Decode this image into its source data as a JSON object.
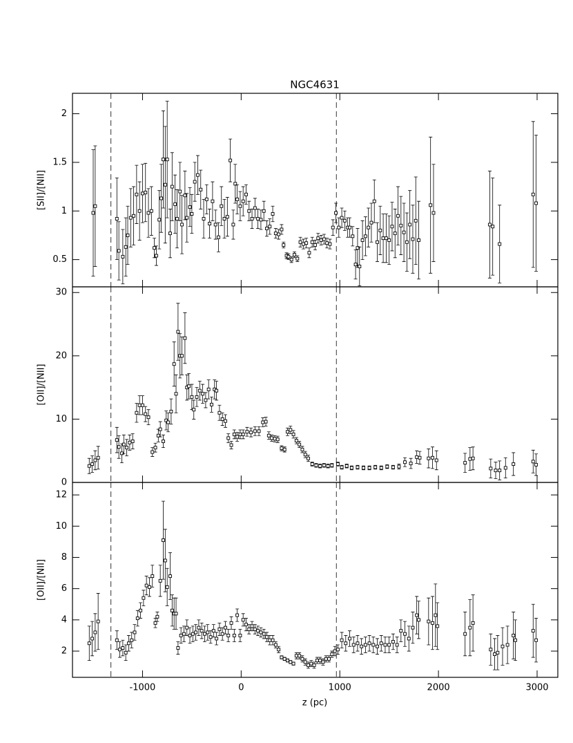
{
  "chart_data": [
    {
      "type": "scatter",
      "title": "NGC4631",
      "ylabel": "[SII]/[NII]",
      "xlim": [
        -1710,
        3210
      ],
      "xticks": [
        -1000,
        0,
        1000,
        2000,
        3000
      ],
      "xtick_labels": false,
      "ylim": [
        0.22,
        2.21
      ],
      "yticks": [
        0.5,
        1,
        1.5,
        2
      ],
      "vlines": [
        -1320,
        965
      ],
      "x": [
        -1500,
        -1480,
        -1260,
        -1240,
        -1200,
        -1170,
        -1150,
        -1120,
        -1090,
        -1060,
        -1030,
        -1000,
        -970,
        -940,
        -910,
        -880,
        -860,
        -830,
        -810,
        -790,
        -770,
        -750,
        -720,
        -700,
        -670,
        -650,
        -620,
        -600,
        -570,
        -550,
        -520,
        -500,
        -470,
        -440,
        -410,
        -380,
        -350,
        -320,
        -290,
        -260,
        -230,
        -200,
        -170,
        -140,
        -110,
        -80,
        -60,
        -40,
        -10,
        20,
        50,
        80,
        110,
        140,
        170,
        200,
        230,
        260,
        290,
        320,
        350,
        380,
        410,
        430,
        460,
        480,
        510,
        540,
        570,
        600,
        630,
        660,
        690,
        720,
        750,
        780,
        810,
        840,
        870,
        900,
        930,
        960,
        990,
        1020,
        1050,
        1080,
        1100,
        1130,
        1160,
        1180,
        1200,
        1230,
        1260,
        1290,
        1320,
        1350,
        1380,
        1410,
        1440,
        1470,
        1500,
        1530,
        1560,
        1590,
        1620,
        1650,
        1680,
        1710,
        1740,
        1770,
        1800,
        1920,
        1950,
        2520,
        2550,
        2620,
        2960,
        2990
      ],
      "values": [
        0.98,
        1.05,
        0.92,
        0.59,
        0.53,
        0.63,
        0.75,
        0.93,
        0.95,
        1.17,
        1.0,
        1.18,
        1.19,
        0.98,
        1.0,
        0.62,
        0.54,
        0.91,
        1.13,
        1.53,
        1.27,
        1.53,
        0.77,
        1.25,
        1.07,
        0.92,
        1.2,
        0.86,
        1.16,
        0.93,
        1.04,
        0.97,
        1.3,
        1.37,
        1.22,
        0.92,
        1.12,
        0.87,
        1.1,
        0.86,
        0.73,
        1.05,
        0.92,
        0.94,
        1.52,
        0.86,
        1.28,
        1.12,
        1.05,
        1.1,
        1.17,
        1.0,
        0.92,
        1.03,
        0.92,
        0.91,
        1.0,
        0.82,
        0.84,
        0.97,
        0.77,
        0.76,
        0.81,
        0.65,
        0.54,
        0.53,
        0.5,
        0.55,
        0.51,
        0.68,
        0.66,
        0.67,
        0.57,
        0.68,
        0.65,
        0.72,
        0.7,
        0.71,
        0.67,
        0.66,
        0.83,
        0.98,
        0.83,
        0.93,
        0.9,
        0.83,
        0.83,
        0.74,
        0.45,
        0.62,
        0.43,
        0.7,
        0.74,
        0.83,
        0.88,
        1.1,
        0.68,
        0.8,
        0.72,
        0.72,
        0.7,
        0.84,
        0.77,
        0.95,
        0.85,
        0.78,
        0.68,
        0.86,
        0.71,
        0.9,
        0.7,
        1.06,
        0.98,
        0.86,
        0.84,
        0.66,
        1.17,
        1.08
      ],
      "errors": [
        0.65,
        0.62,
        0.42,
        0.3,
        0.28,
        0.3,
        0.3,
        0.3,
        0.3,
        0.3,
        0.3,
        0.3,
        0.3,
        0.25,
        0.25,
        0.1,
        0.1,
        0.3,
        0.35,
        0.5,
        0.6,
        0.6,
        0.25,
        0.35,
        0.3,
        0.3,
        0.3,
        0.3,
        0.25,
        0.25,
        0.2,
        0.2,
        0.2,
        0.2,
        0.2,
        0.2,
        0.15,
        0.15,
        0.2,
        0.15,
        0.15,
        0.2,
        0.2,
        0.2,
        0.22,
        0.15,
        0.2,
        0.15,
        0.15,
        0.15,
        0.1,
        0.1,
        0.1,
        0.1,
        0.1,
        0.1,
        0.1,
        0.08,
        0.08,
        0.08,
        0.05,
        0.05,
        0.05,
        0.03,
        0.03,
        0.03,
        0.03,
        0.03,
        0.03,
        0.05,
        0.05,
        0.05,
        0.05,
        0.05,
        0.05,
        0.05,
        0.05,
        0.05,
        0.05,
        0.05,
        0.08,
        0.1,
        0.1,
        0.1,
        0.1,
        0.1,
        0.1,
        0.1,
        0.15,
        0.2,
        0.2,
        0.2,
        0.2,
        0.2,
        0.2,
        0.22,
        0.2,
        0.25,
        0.25,
        0.25,
        0.25,
        0.25,
        0.25,
        0.3,
        0.3,
        0.3,
        0.3,
        0.35,
        0.35,
        0.45,
        0.4,
        0.7,
        0.5,
        0.55,
        0.5,
        0.4,
        0.75,
        0.7
      ]
    },
    {
      "type": "scatter",
      "ylabel": "[OII]/[NII]",
      "xlim": [
        -1710,
        3210
      ],
      "xticks": [
        -1000,
        0,
        1000,
        2000,
        3000
      ],
      "xtick_labels": false,
      "ylim": [
        0,
        30.9
      ],
      "yticks": [
        0,
        10,
        20,
        30
      ],
      "vlines": [
        -1320,
        965
      ],
      "x": [
        -1540,
        -1510,
        -1480,
        -1450,
        -1260,
        -1240,
        -1210,
        -1190,
        -1160,
        -1130,
        -1100,
        -1060,
        -1030,
        -1000,
        -970,
        -940,
        -900,
        -870,
        -840,
        -820,
        -790,
        -760,
        -740,
        -710,
        -680,
        -660,
        -640,
        -620,
        -600,
        -570,
        -550,
        -530,
        -500,
        -480,
        -450,
        -420,
        -390,
        -360,
        -330,
        -300,
        -270,
        -250,
        -220,
        -190,
        -160,
        -130,
        -100,
        -70,
        -40,
        -10,
        20,
        60,
        100,
        140,
        180,
        220,
        250,
        280,
        310,
        340,
        370,
        410,
        440,
        470,
        500,
        530,
        560,
        590,
        620,
        650,
        680,
        720,
        760,
        800,
        840,
        880,
        920,
        980,
        1020,
        1070,
        1120,
        1180,
        1240,
        1300,
        1360,
        1420,
        1480,
        1540,
        1600,
        1660,
        1720,
        1780,
        1810,
        1900,
        1940,
        1980,
        2270,
        2320,
        2350,
        2530,
        2580,
        2620,
        2680,
        2760,
        2960,
        2990
      ],
      "values": [
        2.6,
        2.9,
        3.5,
        3.9,
        6.7,
        5.6,
        4.6,
        6,
        5.5,
        6.3,
        6.5,
        11,
        12.2,
        12.2,
        10.8,
        10.3,
        4.8,
        5.5,
        7.4,
        8.4,
        6.5,
        9.8,
        9.5,
        11.2,
        18.7,
        14,
        23.8,
        20,
        20,
        22.8,
        15,
        15.2,
        13.5,
        11.5,
        13.5,
        14.5,
        14,
        13,
        14.7,
        12.3,
        14.7,
        14.5,
        11,
        10,
        9.7,
        7,
        5.9,
        7.6,
        7.2,
        7.6,
        7.6,
        8,
        7.9,
        8.1,
        8.1,
        9.5,
        9.6,
        7.4,
        7,
        6.9,
        6.8,
        5.4,
        5.2,
        8,
        8.3,
        7.6,
        6.6,
        6,
        5.2,
        4.4,
        3.8,
        2.9,
        2.7,
        2.6,
        2.7,
        2.6,
        2.7,
        2.9,
        2.4,
        2.6,
        2.3,
        2.4,
        2.3,
        2.3,
        2.4,
        2.3,
        2.5,
        2.4,
        2.5,
        3.2,
        3,
        4,
        3.9,
        3.8,
        3.9,
        3.5,
        3.1,
        3.7,
        3.8,
        2.2,
        1.9,
        1.9,
        2.3,
        2.9,
        3.3,
        2.8
      ],
      "errors": [
        1.2,
        1.3,
        1.5,
        1.8,
        2,
        1.8,
        1.5,
        1.5,
        1.3,
        1.2,
        1.2,
        1.5,
        1.5,
        1.5,
        1.2,
        1.2,
        0.7,
        0.7,
        1,
        1.2,
        1,
        1.5,
        1.5,
        2,
        3.5,
        3,
        4.5,
        3.5,
        3,
        4,
        2,
        2,
        2,
        1.5,
        1.5,
        1.5,
        1.5,
        1.2,
        1.5,
        1.2,
        1.5,
        1.5,
        1.2,
        1,
        1,
        0.7,
        0.6,
        0.7,
        0.7,
        0.7,
        0.7,
        0.7,
        0.7,
        0.7,
        0.7,
        0.7,
        0.7,
        0.6,
        0.5,
        0.5,
        0.5,
        0.4,
        0.4,
        0.6,
        0.6,
        0.6,
        0.5,
        0.5,
        0.5,
        0.5,
        0.5,
        0.3,
        0.3,
        0.3,
        0.3,
        0.3,
        0.3,
        0.3,
        0.3,
        0.3,
        0.3,
        0.3,
        0.3,
        0.3,
        0.3,
        0.3,
        0.3,
        0.3,
        0.4,
        0.7,
        0.8,
        1,
        1,
        1.5,
        1.7,
        1.5,
        1.5,
        1.8,
        1.8,
        1.5,
        1.3,
        1.5,
        1.6,
        1.8,
        1.8,
        1.7
      ]
    },
    {
      "type": "scatter",
      "ylabel": "[OII]/[NII]",
      "xlabel": "z (pc)",
      "xlim": [
        -1710,
        3210
      ],
      "xticks": [
        -1000,
        0,
        1000,
        2000,
        3000
      ],
      "xtick_labels": true,
      "ylim": [
        0.32,
        12.8
      ],
      "yticks": [
        2,
        4,
        6,
        8,
        10,
        12
      ],
      "vlines": [
        -1320,
        965
      ],
      "x": [
        -1540,
        -1510,
        -1480,
        -1450,
        -1260,
        -1230,
        -1200,
        -1170,
        -1140,
        -1110,
        -1080,
        -1050,
        -1020,
        -990,
        -960,
        -930,
        -900,
        -870,
        -850,
        -820,
        -790,
        -770,
        -750,
        -720,
        -700,
        -680,
        -660,
        -640,
        -610,
        -580,
        -550,
        -520,
        -490,
        -460,
        -430,
        -400,
        -370,
        -340,
        -310,
        -280,
        -250,
        -220,
        -190,
        -160,
        -130,
        -100,
        -70,
        -40,
        -10,
        20,
        50,
        80,
        110,
        140,
        170,
        200,
        230,
        260,
        290,
        320,
        350,
        380,
        410,
        440,
        470,
        500,
        530,
        560,
        590,
        620,
        650,
        680,
        710,
        740,
        770,
        800,
        830,
        860,
        890,
        920,
        950,
        980,
        1020,
        1060,
        1100,
        1140,
        1180,
        1220,
        1260,
        1300,
        1340,
        1380,
        1420,
        1460,
        1500,
        1540,
        1580,
        1620,
        1660,
        1700,
        1740,
        1780,
        1800,
        1900,
        1940,
        1970,
        1990,
        2270,
        2320,
        2350,
        2530,
        2570,
        2600,
        2650,
        2700,
        2760,
        2780,
        2960,
        2990
      ],
      "values": [
        2.5,
        2.8,
        3.2,
        3.9,
        2.7,
        2.1,
        2.2,
        1.9,
        2.5,
        2.7,
        3.2,
        4.1,
        4.6,
        5.4,
        6.2,
        6.1,
        6.8,
        3.8,
        4.2,
        6.5,
        9.1,
        7.8,
        6.1,
        6.8,
        4.6,
        4.4,
        4.4,
        2.2,
        3,
        3.1,
        3.5,
        3,
        3.1,
        3.2,
        3.5,
        3.3,
        3.1,
        3.2,
        2.9,
        3.3,
        2.8,
        3.4,
        3.1,
        3.5,
        3,
        3.8,
        3,
        4.3,
        3,
        4,
        3.7,
        3.4,
        3.6,
        3.4,
        3.3,
        3.2,
        3.1,
        2.9,
        2.7,
        2.7,
        2.4,
        2.1,
        1.6,
        1.5,
        1.4,
        1.3,
        1.2,
        1.7,
        1.7,
        1.5,
        1.3,
        1.1,
        1.2,
        1.1,
        1.4,
        1.4,
        1.3,
        1.5,
        1.5,
        1.8,
        2,
        2.1,
        2.7,
        2.5,
        2.8,
        2.4,
        2.5,
        2.3,
        2.4,
        2.5,
        2.4,
        2.3,
        2.5,
        2.4,
        2.4,
        2.6,
        2.4,
        3.3,
        3.1,
        2.8,
        3.5,
        4.3,
        4,
        3.9,
        3.8,
        4.3,
        3.6,
        3.1,
        3.5,
        3.8,
        2.1,
        1.8,
        1.9,
        2.3,
        2.4,
        3,
        2.7,
        3.3,
        2.7
      ],
      "errors": [
        1.1,
        1.1,
        1.2,
        1.8,
        0.6,
        0.5,
        0.5,
        0.5,
        0.5,
        0.5,
        0.5,
        0.5,
        0.5,
        0.5,
        0.6,
        0.6,
        0.7,
        0.3,
        0.3,
        1,
        2.5,
        2,
        1.2,
        1.5,
        1,
        1,
        1,
        0.4,
        0.5,
        0.5,
        0.5,
        0.5,
        0.5,
        0.5,
        0.5,
        0.5,
        0.5,
        0.5,
        0.4,
        0.4,
        0.4,
        0.4,
        0.4,
        0.4,
        0.4,
        0.4,
        0.4,
        0.4,
        0.4,
        0.4,
        0.4,
        0.3,
        0.3,
        0.3,
        0.3,
        0.3,
        0.3,
        0.3,
        0.3,
        0.3,
        0.2,
        0.2,
        0.1,
        0.1,
        0.1,
        0.1,
        0.1,
        0.2,
        0.2,
        0.2,
        0.2,
        0.2,
        0.2,
        0.2,
        0.2,
        0.2,
        0.2,
        0.2,
        0.2,
        0.2,
        0.3,
        0.3,
        0.5,
        0.5,
        0.5,
        0.5,
        0.5,
        0.5,
        0.5,
        0.5,
        0.5,
        0.5,
        0.5,
        0.5,
        0.5,
        0.5,
        0.5,
        0.7,
        0.8,
        0.8,
        1,
        1.2,
        1.2,
        1.5,
        1.7,
        2,
        1.5,
        1.4,
        1.8,
        1.8,
        1,
        1,
        1.1,
        1.2,
        1.2,
        1.5,
        1.3,
        1.7,
        1.4
      ]
    }
  ]
}
